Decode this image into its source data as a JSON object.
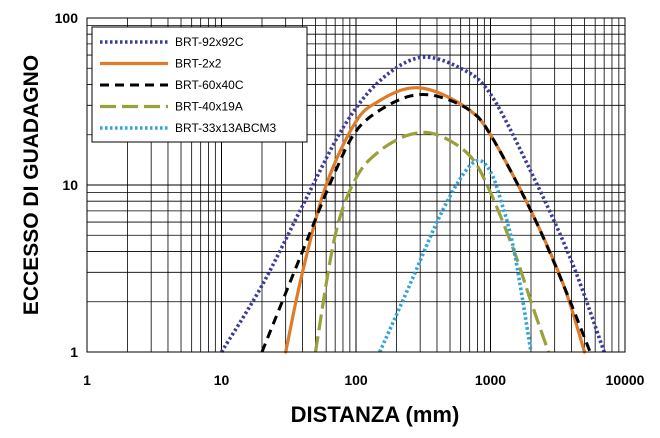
{
  "chart_data": {
    "type": "line",
    "xlabel": "DISTANZA (mm)",
    "ylabel": "ECCESSO DI GUADAGNO",
    "x_scale": "log",
    "y_scale": "log",
    "xlim": [
      1,
      10000
    ],
    "ylim": [
      1,
      100
    ],
    "x_ticks": [
      "1",
      "10",
      "100",
      "1000",
      "10000"
    ],
    "y_ticks": [
      "1",
      "10",
      "100"
    ],
    "grid": true,
    "legend_position": "top-left",
    "series": [
      {
        "name": "BRT-92x92C",
        "color": "#3b3b9a",
        "dash": "dotted",
        "x": [
          10,
          20,
          40,
          80,
          150,
          300,
          600,
          1000,
          2000,
          4000,
          7000
        ],
        "y": [
          1,
          2.5,
          7.5,
          22,
          42,
          58,
          50,
          35,
          12,
          3.5,
          1
        ]
      },
      {
        "name": "BRT-2x2",
        "color": "#e07b2a",
        "dash": "solid",
        "x": [
          30,
          40,
          60,
          100,
          150,
          250,
          400,
          700,
          1000,
          2000,
          3500,
          5000
        ],
        "y": [
          1,
          3,
          10,
          24,
          32,
          38,
          36,
          28,
          20,
          7,
          2.5,
          1
        ]
      },
      {
        "name": "BRT-60x40C",
        "color": "#000000",
        "dash": "dashed",
        "x": [
          20,
          40,
          70,
          100,
          150,
          250,
          400,
          700,
          1000,
          2000,
          3500,
          5500
        ],
        "y": [
          1,
          4,
          12,
          21,
          28,
          34,
          34,
          28,
          20,
          7,
          2.5,
          1
        ]
      },
      {
        "name": "BRT-40x19A",
        "color": "#9aa03a",
        "dash": "longdash",
        "x": [
          50,
          70,
          100,
          150,
          250,
          400,
          700,
          1000,
          1500,
          2000,
          2700
        ],
        "y": [
          1,
          5,
          11,
          16,
          20,
          20,
          15,
          9,
          4,
          2,
          1
        ]
      },
      {
        "name": "BRT-33x13ABCM3",
        "color": "#2ea3dc",
        "dash": "dotted",
        "x": [
          150,
          250,
          400,
          600,
          800,
          1000,
          1200,
          1500,
          2000
        ],
        "y": [
          1,
          2.5,
          6,
          11,
          14,
          12,
          8,
          4,
          1
        ]
      }
    ]
  }
}
